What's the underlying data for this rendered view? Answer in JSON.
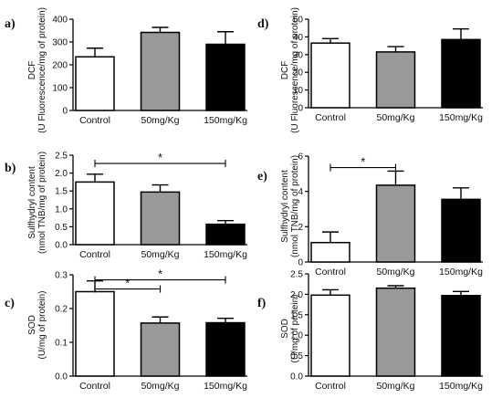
{
  "chart_data": [
    {
      "panel": "a)",
      "type": "bar",
      "categories": [
        "Control",
        "50mg/Kg",
        "150mg/Kg"
      ],
      "values": [
        235,
        342,
        290
      ],
      "errors": [
        38,
        22,
        55
      ],
      "fills": [
        "#ffffff",
        "#999999",
        "#000000"
      ],
      "ylabel": [
        "DCF",
        "(U Fluorescence/mg of protein)"
      ],
      "ylim": [
        0,
        400
      ],
      "ticks": [
        "0",
        "100",
        "200",
        "300",
        "400"
      ],
      "significance": []
    },
    {
      "panel": "b)",
      "type": "bar",
      "categories": [
        "Control",
        "50mg/Kg",
        "150mg/Kg"
      ],
      "values": [
        1.75,
        1.47,
        0.57
      ],
      "errors": [
        0.22,
        0.2,
        0.1
      ],
      "fills": [
        "#ffffff",
        "#999999",
        "#000000"
      ],
      "ylabel": [
        "Sulfhydryl content",
        "(nmol TNB/mg of protein)"
      ],
      "ylim": [
        0,
        2.5
      ],
      "ticks": [
        "0.0",
        "0.5",
        "1.0",
        "1.5",
        "2.0",
        "2.5"
      ],
      "significance": [
        {
          "from": 0,
          "to": 2,
          "label": "*",
          "level": 2.27
        }
      ]
    },
    {
      "panel": "c)",
      "type": "bar",
      "categories": [
        "Control",
        "50mg/Kg",
        "150mg/Kg"
      ],
      "values": [
        0.25,
        0.157,
        0.158
      ],
      "errors": [
        0.032,
        0.018,
        0.013
      ],
      "fills": [
        "#ffffff",
        "#999999",
        "#000000"
      ],
      "ylabel": [
        "SOD",
        "(U/mg of protein)"
      ],
      "ylim": [
        0,
        0.3
      ],
      "ticks": [
        "0.0",
        "0.1",
        "0.2",
        "0.3"
      ],
      "significance": [
        {
          "from": 0,
          "to": 1,
          "label": "*",
          "level": 0.258
        },
        {
          "from": 0,
          "to": 2,
          "label": "*",
          "level": 0.285
        }
      ]
    },
    {
      "panel": "d)",
      "type": "bar",
      "categories": [
        "Control",
        "50mg/Kg",
        "150mg/Kg"
      ],
      "values": [
        36.5,
        31.5,
        38.5
      ],
      "errors": [
        2.5,
        3,
        6
      ],
      "fills": [
        "#ffffff",
        "#999999",
        "#000000"
      ],
      "ylabel": [
        "DCF",
        "(U Fluorescence/mg of protein)"
      ],
      "ylim": [
        0,
        50
      ],
      "ticks": [
        "0",
        "10",
        "20",
        "30",
        "40",
        "50"
      ],
      "significance": []
    },
    {
      "panel": "e)",
      "type": "bar",
      "categories": [
        "Control",
        "50mg/Kg",
        "150mg/Kg"
      ],
      "values": [
        1.1,
        4.35,
        3.55
      ],
      "errors": [
        0.6,
        0.8,
        0.65
      ],
      "fills": [
        "#ffffff",
        "#999999",
        "#000000"
      ],
      "ylabel": [
        "Sulfhydryl content",
        "(nmol TNB/mg of protein)"
      ],
      "ylim": [
        0,
        6
      ],
      "ticks": [
        "0",
        "2",
        "4",
        "6"
      ],
      "significance": [
        {
          "from": 0,
          "to": 1,
          "label": "*",
          "level": 5.35
        }
      ]
    },
    {
      "panel": "f)",
      "type": "bar",
      "categories": [
        "Control",
        "50mg/Kg",
        "150mg/Kg"
      ],
      "values": [
        1.98,
        2.15,
        1.97
      ],
      "errors": [
        0.13,
        0.06,
        0.1
      ],
      "fills": [
        "#ffffff",
        "#999999",
        "#000000"
      ],
      "ylabel": [
        "SOD",
        "(U/mg of protein)"
      ],
      "ylim": [
        0,
        2.5
      ],
      "ticks": [
        "0.0",
        "0.5",
        "1.0",
        "1.5",
        "2.0",
        "2.5"
      ],
      "significance": []
    }
  ]
}
